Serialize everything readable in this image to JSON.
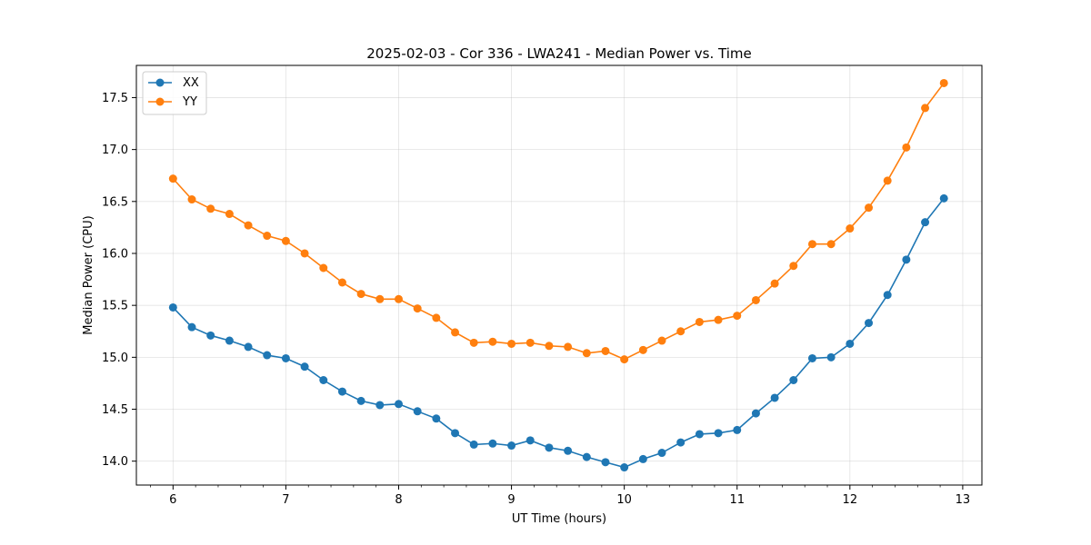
{
  "chart_data": {
    "type": "line",
    "title": "2025-02-03 - Cor 336 - LWA241 - Median Power vs. Time",
    "xlabel": "UT Time (hours)",
    "ylabel": "Median Power (CPU)",
    "xlim": [
      5.675,
      13.17
    ],
    "ylim": [
      13.77,
      17.81
    ],
    "xticks": [
      6,
      7,
      8,
      9,
      10,
      11,
      12,
      13
    ],
    "xtick_labels": [
      "6",
      "7",
      "8",
      "9",
      "10",
      "11",
      "12",
      "13"
    ],
    "xminor_step": 0.2,
    "yticks": [
      14.0,
      14.5,
      15.0,
      15.5,
      16.0,
      16.5,
      17.0,
      17.5
    ],
    "ytick_labels": [
      "14.0",
      "14.5",
      "15.0",
      "15.5",
      "16.0",
      "16.5",
      "17.0",
      "17.5"
    ],
    "grid": true,
    "legend_position": "top-left",
    "x": [
      6.0,
      6.1667,
      6.3333,
      6.5,
      6.6667,
      6.8333,
      7.0,
      7.1667,
      7.3333,
      7.5,
      7.6667,
      7.8333,
      8.0,
      8.1667,
      8.3333,
      8.5,
      8.6667,
      8.8333,
      9.0,
      9.1667,
      9.3333,
      9.5,
      9.6667,
      9.8333,
      10.0,
      10.1667,
      10.3333,
      10.5,
      10.6667,
      10.8333,
      11.0,
      11.1667,
      11.3333,
      11.5,
      11.6667,
      11.8333,
      12.0,
      12.1667,
      12.3333,
      12.5,
      12.6667,
      12.8333
    ],
    "series": [
      {
        "name": "XX",
        "color": "#1f77b4",
        "values": [
          15.48,
          15.29,
          15.21,
          15.16,
          15.1,
          15.02,
          14.99,
          14.91,
          14.78,
          14.67,
          14.58,
          14.54,
          14.55,
          14.48,
          14.41,
          14.27,
          14.16,
          14.17,
          14.15,
          14.2,
          14.13,
          14.1,
          14.04,
          13.99,
          13.94,
          14.02,
          14.08,
          14.18,
          14.26,
          14.27,
          14.3,
          14.46,
          14.61,
          14.78,
          14.99,
          15.0,
          15.13,
          15.33,
          15.6,
          15.94,
          16.3,
          16.53
        ]
      },
      {
        "name": "YY",
        "color": "#ff7f0e",
        "values": [
          16.72,
          16.52,
          16.43,
          16.38,
          16.27,
          16.17,
          16.12,
          16.0,
          15.86,
          15.72,
          15.61,
          15.56,
          15.56,
          15.47,
          15.38,
          15.24,
          15.14,
          15.15,
          15.13,
          15.14,
          15.11,
          15.1,
          15.04,
          15.06,
          14.98,
          15.07,
          15.16,
          15.25,
          15.34,
          15.36,
          15.4,
          15.55,
          15.71,
          15.88,
          16.09,
          16.09,
          16.24,
          16.44,
          16.7,
          17.02,
          17.4,
          17.64
        ]
      }
    ]
  }
}
